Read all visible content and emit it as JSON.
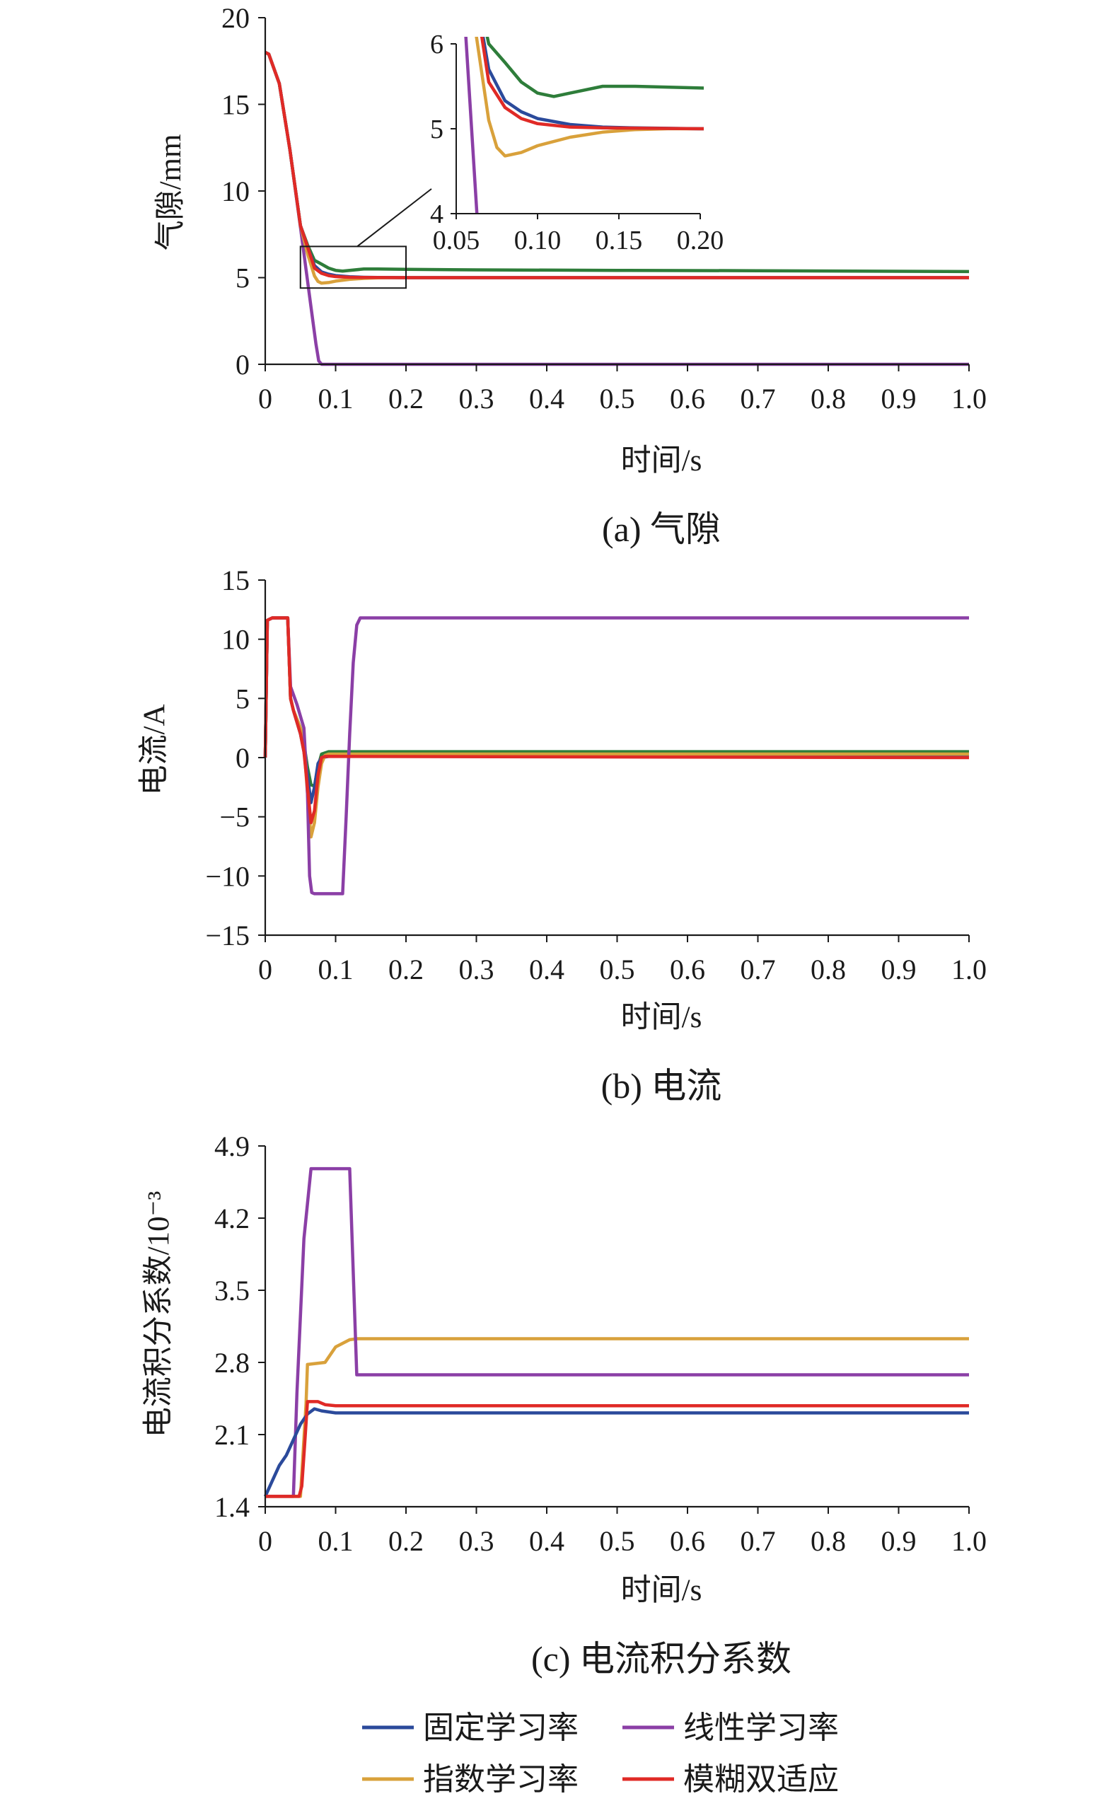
{
  "colors": {
    "fixed": "#2b4a9b",
    "linear": "#8b3fa6",
    "exponential": "#d9a13b",
    "fuzzy": "#e02a26",
    "green": "#2e7d3a",
    "axis": "#1a1a1a"
  },
  "legend": [
    {
      "label": "固定学习率",
      "color_key": "fixed"
    },
    {
      "label": "线性学习率",
      "color_key": "linear"
    },
    {
      "label": "指数学习率",
      "color_key": "exponential"
    },
    {
      "label": "模糊双适应",
      "color_key": "fuzzy"
    }
  ],
  "chart_data": [
    {
      "id": "a",
      "type": "line",
      "caption": "(a) 气隙",
      "xlabel": "时间/s",
      "ylabel": "气隙/mm",
      "xlim": [
        0,
        1.0
      ],
      "ylim": [
        0,
        20
      ],
      "xticks": [
        "0",
        "0.1",
        "0.2",
        "0.3",
        "0.4",
        "0.5",
        "0.6",
        "0.7",
        "0.8",
        "0.9",
        "1.0"
      ],
      "yticks": [
        "0",
        "5",
        "10",
        "15",
        "20"
      ],
      "grid": false,
      "series": [
        {
          "color_key": "linear",
          "x": [
            0,
            0.005,
            0.02,
            0.035,
            0.05,
            0.065,
            0.072,
            0.076,
            0.08,
            0.09,
            1.0
          ],
          "y": [
            18,
            17.9,
            16.2,
            12.4,
            7.9,
            3.3,
            1.2,
            0.2,
            0,
            0,
            0
          ]
        },
        {
          "color_key": "green",
          "x": [
            0,
            0.005,
            0.02,
            0.035,
            0.05,
            0.06,
            0.07,
            0.08,
            0.09,
            0.1,
            0.11,
            0.12,
            0.14,
            0.16,
            0.2,
            0.3,
            0.5,
            0.7,
            1.0
          ],
          "y": [
            18,
            17.9,
            16.2,
            12.4,
            8.0,
            6.9,
            6.0,
            5.78,
            5.55,
            5.42,
            5.38,
            5.42,
            5.5,
            5.5,
            5.48,
            5.45,
            5.42,
            5.4,
            5.35
          ]
        },
        {
          "color_key": "exponential",
          "x": [
            0,
            0.005,
            0.02,
            0.035,
            0.05,
            0.06,
            0.07,
            0.075,
            0.08,
            0.09,
            0.1,
            0.12,
            0.14,
            0.16,
            0.18,
            0.2,
            1.0
          ],
          "y": [
            18,
            17.9,
            16.2,
            12.4,
            8.0,
            6.4,
            5.1,
            4.78,
            4.68,
            4.72,
            4.8,
            4.9,
            4.96,
            4.99,
            5.0,
            5.0,
            5.0
          ]
        },
        {
          "color_key": "fixed",
          "x": [
            0,
            0.005,
            0.02,
            0.035,
            0.05,
            0.06,
            0.07,
            0.08,
            0.09,
            0.1,
            0.12,
            0.14,
            0.16,
            0.2,
            1.0
          ],
          "y": [
            18,
            17.9,
            16.2,
            12.4,
            8.0,
            6.8,
            5.7,
            5.33,
            5.2,
            5.12,
            5.05,
            5.02,
            5.01,
            5.0,
            5.0
          ]
        },
        {
          "color_key": "fuzzy",
          "x": [
            0,
            0.005,
            0.02,
            0.035,
            0.05,
            0.06,
            0.07,
            0.08,
            0.09,
            0.1,
            0.12,
            0.14,
            0.2,
            1.0
          ],
          "y": [
            18,
            17.9,
            16.2,
            12.4,
            8.0,
            6.8,
            5.55,
            5.25,
            5.12,
            5.06,
            5.02,
            5.01,
            5.0,
            5.0
          ]
        }
      ],
      "inset": {
        "xlim": [
          0.05,
          0.2
        ],
        "ylim": [
          4,
          6
        ],
        "xticks": [
          "0.05",
          "0.10",
          "0.15",
          "0.20"
        ],
        "yticks": [
          "4",
          "5",
          "6"
        ],
        "zoom_box": {
          "x": [
            0.05,
            0.2
          ],
          "y": [
            4.4,
            6.8
          ]
        }
      }
    },
    {
      "id": "b",
      "type": "line",
      "caption": "(b) 电流",
      "xlabel": "时间/s",
      "ylabel": "电流/A",
      "xlim": [
        0,
        1.0
      ],
      "ylim": [
        -15,
        15
      ],
      "xticks": [
        "0",
        "0.1",
        "0.2",
        "0.3",
        "0.4",
        "0.5",
        "0.6",
        "0.7",
        "0.8",
        "0.9",
        "1.0"
      ],
      "yticks": [
        "−15",
        "−10",
        "−5",
        "0",
        "5",
        "10",
        "15"
      ],
      "grid": false,
      "series": [
        {
          "color_key": "green",
          "x": [
            0,
            0.003,
            0.01,
            0.032,
            0.036,
            0.04,
            0.05,
            0.055,
            0.06,
            0.065,
            0.07,
            0.075,
            0.08,
            0.09,
            1.0
          ],
          "y": [
            0,
            11.6,
            11.8,
            11.8,
            5.0,
            4.0,
            2.5,
            1.2,
            -0.8,
            -2.3,
            -2.4,
            -0.8,
            0.3,
            0.5,
            0.5
          ]
        },
        {
          "color_key": "fixed",
          "x": [
            0,
            0.003,
            0.01,
            0.032,
            0.036,
            0.04,
            0.05,
            0.055,
            0.06,
            0.065,
            0.07,
            0.075,
            0.08,
            0.09,
            1.0
          ],
          "y": [
            0,
            11.6,
            11.8,
            11.8,
            5.0,
            4.0,
            2.0,
            0.5,
            -1.5,
            -3.8,
            -2.5,
            -0.5,
            0.0,
            0.1,
            0.1
          ]
        },
        {
          "color_key": "exponential",
          "x": [
            0,
            0.003,
            0.01,
            0.032,
            0.036,
            0.04,
            0.05,
            0.055,
            0.06,
            0.065,
            0.07,
            0.075,
            0.08,
            0.085,
            0.09,
            1.0
          ],
          "y": [
            0,
            11.6,
            11.8,
            11.8,
            5.0,
            4.0,
            2.5,
            1.0,
            -3.0,
            -6.7,
            -5.5,
            -2.5,
            -0.5,
            0.2,
            0.3,
            0.3
          ]
        },
        {
          "color_key": "linear",
          "x": [
            0,
            0.003,
            0.01,
            0.032,
            0.036,
            0.045,
            0.055,
            0.06,
            0.063,
            0.066,
            0.07,
            0.11,
            0.115,
            0.12,
            0.125,
            0.13,
            0.135,
            1.0
          ],
          "y": [
            0,
            11.6,
            11.8,
            11.8,
            6.0,
            4.5,
            2.5,
            -3.0,
            -10.0,
            -11.4,
            -11.5,
            -11.5,
            -5.0,
            2.0,
            8.0,
            11.2,
            11.8,
            11.8
          ]
        },
        {
          "color_key": "fuzzy",
          "x": [
            0,
            0.003,
            0.01,
            0.032,
            0.036,
            0.04,
            0.05,
            0.055,
            0.06,
            0.065,
            0.07,
            0.075,
            0.08,
            0.085,
            1.0
          ],
          "y": [
            0,
            11.6,
            11.8,
            11.8,
            5.0,
            4.0,
            2.0,
            0.5,
            -2.5,
            -5.5,
            -4.5,
            -1.5,
            0.0,
            0.1,
            0.0
          ]
        }
      ]
    },
    {
      "id": "c",
      "type": "line",
      "caption": "(c) 电流积分系数",
      "xlabel": "时间/s",
      "ylabel": "电流积分系数/10⁻³",
      "xlim": [
        0,
        1.0
      ],
      "ylim": [
        1.4,
        4.9
      ],
      "xticks": [
        "0",
        "0.1",
        "0.2",
        "0.3",
        "0.4",
        "0.5",
        "0.6",
        "0.7",
        "0.8",
        "0.9",
        "1.0"
      ],
      "yticks": [
        "1.4",
        "2.1",
        "2.8",
        "3.5",
        "4.2",
        "4.9"
      ],
      "grid": false,
      "series": [
        {
          "color_key": "exponential",
          "x": [
            0,
            0.05,
            0.058,
            0.06,
            0.085,
            0.1,
            0.12,
            0.13,
            1.0
          ],
          "y": [
            1.5,
            1.5,
            2.4,
            2.78,
            2.8,
            2.95,
            3.02,
            3.03,
            3.03
          ]
        },
        {
          "color_key": "linear",
          "x": [
            0,
            0.04,
            0.045,
            0.055,
            0.065,
            0.12,
            0.13,
            1.0
          ],
          "y": [
            1.5,
            1.5,
            2.5,
            4.0,
            4.68,
            4.68,
            2.68,
            2.68
          ]
        },
        {
          "color_key": "fixed",
          "x": [
            0,
            0.01,
            0.02,
            0.03,
            0.04,
            0.05,
            0.06,
            0.07,
            0.08,
            0.1,
            1.0
          ],
          "y": [
            1.5,
            1.65,
            1.8,
            1.9,
            2.05,
            2.2,
            2.3,
            2.35,
            2.33,
            2.31,
            2.31
          ]
        },
        {
          "color_key": "fuzzy",
          "x": [
            0,
            0.048,
            0.052,
            0.056,
            0.06,
            0.075,
            0.085,
            0.1,
            1.0
          ],
          "y": [
            1.5,
            1.5,
            1.6,
            2.0,
            2.42,
            2.42,
            2.39,
            2.38,
            2.38
          ]
        }
      ]
    }
  ]
}
